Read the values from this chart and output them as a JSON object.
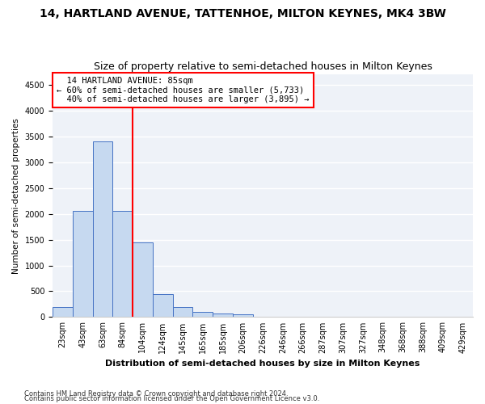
{
  "title": "14, HARTLAND AVENUE, TATTENHOE, MILTON KEYNES, MK4 3BW",
  "subtitle": "Size of property relative to semi-detached houses in Milton Keynes",
  "xlabel": "Distribution of semi-detached houses by size in Milton Keynes",
  "ylabel": "Number of semi-detached properties",
  "footnote1": "Contains HM Land Registry data © Crown copyright and database right 2024.",
  "footnote2": "Contains public sector information licensed under the Open Government Licence v3.0.",
  "bins": [
    "23sqm",
    "43sqm",
    "63sqm",
    "84sqm",
    "104sqm",
    "124sqm",
    "145sqm",
    "165sqm",
    "185sqm",
    "206sqm",
    "226sqm",
    "246sqm",
    "266sqm",
    "287sqm",
    "307sqm",
    "327sqm",
    "348sqm",
    "368sqm",
    "388sqm",
    "409sqm",
    "429sqm"
  ],
  "values": [
    200,
    2050,
    3400,
    2050,
    1450,
    450,
    200,
    100,
    75,
    50,
    0,
    0,
    0,
    0,
    0,
    0,
    0,
    0,
    0,
    0,
    0
  ],
  "bar_color": "#c6d9f0",
  "bar_edge_color": "#4472c4",
  "red_line_index": 3,
  "annotation_title": "14 HARTLAND AVENUE: 85sqm",
  "annotation_line1": "← 60% of semi-detached houses are smaller (5,733)",
  "annotation_line2": "40% of semi-detached houses are larger (3,895) →",
  "ylim": [
    0,
    4700
  ],
  "yticks": [
    0,
    500,
    1000,
    1500,
    2000,
    2500,
    3000,
    3500,
    4000,
    4500
  ],
  "background_color": "#eef2f8",
  "grid_color": "#ffffff",
  "title_fontsize": 10,
  "subtitle_fontsize": 9,
  "ylabel_fontsize": 7.5,
  "xlabel_fontsize": 8,
  "tick_fontsize": 7,
  "annotation_fontsize": 7.5
}
